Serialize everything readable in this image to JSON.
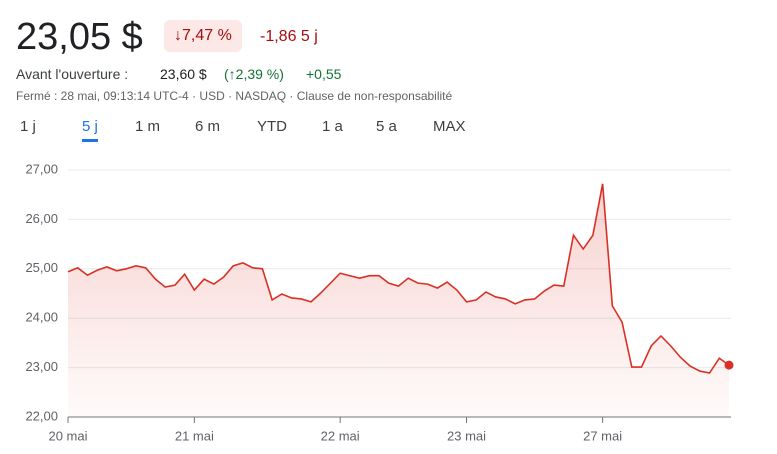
{
  "quote": {
    "price": "23,05 $",
    "change_pct": "↓7,47 %",
    "change_abs": "-1,86",
    "period": "5 j",
    "premarket_label": "Avant l'ouverture :",
    "premarket_price": "23,60 $",
    "premarket_pct": "(↑2,39 %)",
    "premarket_abs": "+0,55",
    "info": "Fermé : 28 mai, 09:13:14 UTC-4 · USD · NASDAQ · Clause de non-responsabilité"
  },
  "tabs": [
    "1 j",
    "5 j",
    "1 m",
    "6 m",
    "YTD",
    "1 a",
    "5 a",
    "MAX"
  ],
  "active_tab": "5 j",
  "chart_data": {
    "type": "line",
    "color": "#d93025",
    "values": [
      24.94,
      25.02,
      24.87,
      24.97,
      25.04,
      24.96,
      25.0,
      25.06,
      25.02,
      24.79,
      24.63,
      24.67,
      24.89,
      24.57,
      24.79,
      24.69,
      24.83,
      25.06,
      25.12,
      25.02,
      25.0,
      24.37,
      24.49,
      24.41,
      24.39,
      24.33,
      24.51,
      24.71,
      24.91,
      24.86,
      24.81,
      24.86,
      24.86,
      24.71,
      24.65,
      24.81,
      24.71,
      24.69,
      24.61,
      24.73,
      24.57,
      24.33,
      24.37,
      24.53,
      24.43,
      24.39,
      24.29,
      24.37,
      24.39,
      24.55,
      24.67,
      24.65,
      25.68,
      25.4,
      25.68,
      26.72,
      24.25,
      23.92,
      23.01,
      23.01,
      23.44,
      23.64,
      23.44,
      23.21,
      23.03,
      22.93,
      22.89,
      23.19,
      23.05
    ],
    "xlim": [
      0,
      68
    ],
    "xticks": [
      {
        "value": 0,
        "label": "20 mai"
      },
      {
        "value": 13,
        "label": "21 mai"
      },
      {
        "value": 28,
        "label": "22 mai"
      },
      {
        "value": 41,
        "label": "23 mai"
      },
      {
        "value": 55,
        "label": "27 mai"
      }
    ],
    "ylim": [
      22,
      27
    ],
    "yticks": [
      {
        "value": 22,
        "label": "22,00"
      },
      {
        "value": 23,
        "label": "23,00"
      },
      {
        "value": 24,
        "label": "24,00"
      },
      {
        "value": 25,
        "label": "25,00"
      },
      {
        "value": 26,
        "label": "26,00"
      },
      {
        "value": 27,
        "label": "27,00"
      }
    ],
    "grid": true
  }
}
